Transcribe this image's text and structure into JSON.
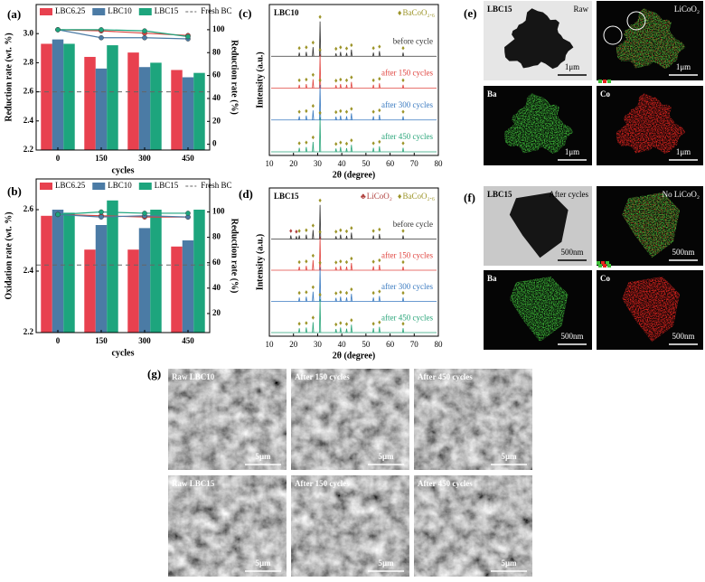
{
  "chart_data": [
    {
      "type": "combo",
      "label": "(a)",
      "categories": [
        "0",
        "150",
        "300",
        "450"
      ],
      "x_label": "cycles",
      "y_label": "Reduction rate (wt. %)",
      "y2_label": "Reduction rate (%)",
      "ylim": [
        2.2,
        3.2
      ],
      "yticks": [
        2.2,
        2.4,
        2.6,
        2.8,
        {
          "value": 3,
          "label": "3.0"
        }
      ],
      "y2lim": [
        -5,
        122
      ],
      "y2ticks": [
        0,
        20,
        40,
        60,
        80,
        100
      ],
      "series": [
        {
          "name": "LBC6.25",
          "type": "bar",
          "color": "#e8414f",
          "values": [
            2.93,
            2.84,
            2.87,
            2.75
          ]
        },
        {
          "name": "LBC10",
          "type": "bar",
          "color": "#4b7ba5",
          "values": [
            2.96,
            2.76,
            2.77,
            2.7
          ]
        },
        {
          "name": "LBC15",
          "type": "bar",
          "color": "#1da57d",
          "values": [
            2.93,
            2.92,
            2.8,
            2.73
          ]
        },
        {
          "name": "Fresh BC",
          "type": "hline",
          "color": "#666666",
          "value": 2.6
        },
        {
          "type": "line",
          "axis": "y2",
          "color": "#d9443f",
          "values": [
            100,
            99,
            97,
            95
          ]
        },
        {
          "type": "line",
          "axis": "y2",
          "color": "#4b7ba5",
          "values": [
            100,
            93,
            93,
            92
          ]
        },
        {
          "type": "line",
          "axis": "y2",
          "color": "#1da57d",
          "values": [
            100,
            100,
            99,
            94
          ]
        }
      ]
    },
    {
      "type": "combo",
      "label": "(b)",
      "categories": [
        "0",
        "150",
        "300",
        "450"
      ],
      "x_label": "cycles",
      "y_label": "Oxidation rate (wt. %)",
      "y2_label": "Reduction rate (%)",
      "ylim": [
        2.2,
        2.7
      ],
      "yticks": [
        2.2,
        2.4,
        2.6
      ],
      "y2lim": [
        5,
        126
      ],
      "y2ticks": [
        20,
        40,
        60,
        80,
        100
      ],
      "series": [
        {
          "name": "LBC6.25",
          "type": "bar",
          "color": "#e8414f",
          "values": [
            2.58,
            2.47,
            2.47,
            2.48
          ]
        },
        {
          "name": "LBC10",
          "type": "bar",
          "color": "#4b7ba5",
          "values": [
            2.6,
            2.55,
            2.54,
            2.5
          ]
        },
        {
          "name": "LBC15",
          "type": "bar",
          "color": "#1da57d",
          "values": [
            2.59,
            2.63,
            2.6,
            2.6
          ]
        },
        {
          "name": "Fresh BC",
          "type": "hline",
          "color": "#666666",
          "value": 2.42
        },
        {
          "type": "line",
          "axis": "y2",
          "color": "#d9443f",
          "values": [
            98,
            97,
            96,
            96
          ]
        },
        {
          "type": "line",
          "axis": "y2",
          "color": "#4b7ba5",
          "values": [
            98,
            96,
            97,
            96
          ]
        },
        {
          "type": "line",
          "axis": "y2",
          "color": "#1da57d",
          "values": [
            98,
            100,
            99,
            99
          ]
        }
      ]
    },
    {
      "type": "xrd",
      "label": "(c)",
      "title": "LBC10",
      "x_label": "2θ (degree)",
      "y_label": "Intensity (a.u.)",
      "xlim": [
        10,
        80
      ],
      "xticks": [
        10,
        20,
        30,
        40,
        50,
        60,
        70,
        80
      ],
      "ylim": [
        0,
        100
      ],
      "phases": [
        {
          "name": "BaCoO₂.₆",
          "symbol": "♦",
          "color": "#9c9428",
          "x": [
            22.4,
            25.3,
            28.1,
            31.0,
            37.6,
            39.5,
            42.0,
            44.0,
            53.1,
            55.6,
            65.4
          ]
        }
      ],
      "series": [
        {
          "name": "before cycle",
          "color": "#333333",
          "x": [
            22.4,
            25.3,
            28.1,
            31.0,
            37.6,
            39.5,
            42.0,
            44.0,
            53.1,
            55.6,
            65.4
          ],
          "values": [
            10,
            12,
            25,
            95,
            8,
            12,
            9,
            18,
            10,
            14,
            10
          ]
        },
        {
          "name": "after 150 cycles",
          "color": "#e0443f",
          "x": [
            22.4,
            25.3,
            28.1,
            31.0,
            37.6,
            39.5,
            42.0,
            44.0,
            53.1,
            55.6,
            65.4
          ],
          "values": [
            9,
            11,
            24,
            92,
            8,
            11,
            9,
            17,
            9,
            13,
            9
          ]
        },
        {
          "name": "after 300 cycles",
          "color": "#3a7ac0",
          "x": [
            22.4,
            25.3,
            28.1,
            31.0,
            37.6,
            39.5,
            42.0,
            44.0,
            53.1,
            55.6,
            65.4
          ],
          "values": [
            10,
            12,
            26,
            96,
            9,
            12,
            10,
            18,
            10,
            14,
            10
          ]
        },
        {
          "name": "after 450 cycles",
          "color": "#2aa57a",
          "x": [
            22.4,
            25.3,
            28.1,
            31.0,
            37.6,
            39.5,
            42.0,
            44.0,
            53.1,
            55.6,
            65.4
          ],
          "values": [
            11,
            13,
            27,
            94,
            9,
            13,
            10,
            19,
            11,
            15,
            11
          ]
        }
      ]
    },
    {
      "type": "xrd",
      "label": "(d)",
      "title": "LBC15",
      "x_label": "2θ (degree)",
      "y_label": "Intensity (a.u.)",
      "xlim": [
        10,
        80
      ],
      "xticks": [
        10,
        20,
        30,
        40,
        50,
        60,
        70,
        80
      ],
      "ylim": [
        0,
        100
      ],
      "phases": [
        {
          "name": "LiCoO₂",
          "symbol": "♣",
          "color": "#b0413e",
          "x": [
            18.9,
            21.2
          ]
        },
        {
          "name": "BaCoO₂.₆",
          "symbol": "♦",
          "color": "#9c9428",
          "x": [
            22.4,
            25.3,
            28.1,
            31.0,
            37.6,
            39.5,
            42.0,
            44.0,
            53.1,
            55.6,
            65.4
          ]
        }
      ],
      "series": [
        {
          "name": "before cycle",
          "color": "#333333",
          "x": [
            18.9,
            21.2,
            22.4,
            25.3,
            28.1,
            31.0,
            37.6,
            39.5,
            42.0,
            44.0,
            53.1,
            55.6,
            65.4
          ],
          "values": [
            10,
            8,
            10,
            12,
            25,
            95,
            8,
            12,
            9,
            18,
            10,
            14,
            10
          ]
        },
        {
          "name": "after 150 cycles",
          "color": "#e0443f",
          "x": [
            22.4,
            25.3,
            28.1,
            31.0,
            37.6,
            39.5,
            42.0,
            44.0,
            53.1,
            55.6,
            65.4
          ],
          "values": [
            10,
            12,
            28,
            94,
            9,
            12,
            10,
            20,
            11,
            15,
            10
          ]
        },
        {
          "name": "after 300 cycles",
          "color": "#3a7ac0",
          "x": [
            22.4,
            25.3,
            28.1,
            31.0,
            37.6,
            39.5,
            42.0,
            44.0,
            53.1,
            55.6,
            65.4
          ],
          "values": [
            11,
            13,
            27,
            95,
            10,
            13,
            11,
            21,
            11,
            15,
            11
          ]
        },
        {
          "name": "after 450 cycles",
          "color": "#2aa57a",
          "x": [
            22.4,
            25.3,
            28.1,
            31.0,
            37.6,
            39.5,
            42.0,
            44.0,
            53.1,
            55.6,
            65.4
          ],
          "values": [
            12,
            14,
            29,
            93,
            10,
            14,
            11,
            22,
            12,
            16,
            12
          ]
        }
      ]
    }
  ],
  "panels": [
    {
      "label": "(e)",
      "tiles": [
        {
          "title": "LBC15",
          "caption": "Raw",
          "scale": "1μm"
        },
        {
          "caption": "LiCoO₂",
          "scale": "1μm"
        },
        {
          "title": "Ba",
          "scale": "1μm"
        },
        {
          "title": "Co",
          "scale": "1μm"
        }
      ]
    },
    {
      "label": "(f)",
      "tiles": [
        {
          "title": "LBC15",
          "caption": "After cycles",
          "scale": "500nm"
        },
        {
          "caption": "No LiCoO₂",
          "scale": "500nm"
        },
        {
          "title": "Ba",
          "scale": "500nm"
        },
        {
          "title": "Co",
          "scale": "500nm"
        }
      ]
    },
    {
      "label": "(g)",
      "tiles": [
        {
          "title": "Raw LBC10",
          "scale": "5μm"
        },
        {
          "title": "After 150 cycles",
          "scale": "5μm"
        },
        {
          "title": "After 450 cycles",
          "scale": "5μm"
        },
        {
          "title": "Raw LBC15",
          "scale": "5μm"
        },
        {
          "title": "After 150 cycles",
          "scale": "5μm"
        },
        {
          "title": "After 450 cycles",
          "scale": "5μm"
        }
      ]
    }
  ]
}
